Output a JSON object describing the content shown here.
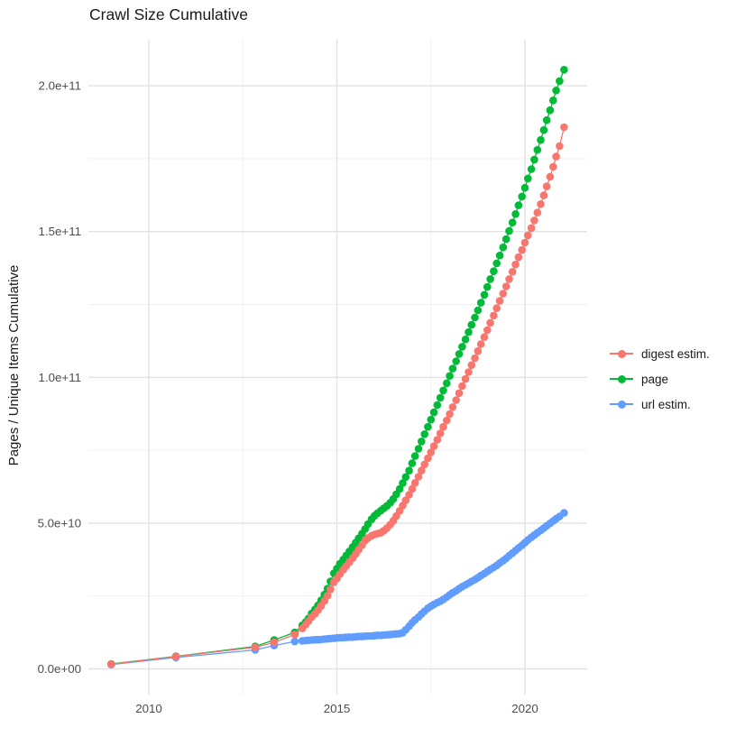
{
  "chart_data": {
    "type": "scatter",
    "title": "Crawl Size Cumulative",
    "xlabel": "",
    "ylabel": "Pages / Unique Items Cumulative",
    "unit": "values in billions (1e9) of pages / unique items",
    "grid": true,
    "legend_position": "right",
    "xlim": [
      2008.4,
      2021.7
    ],
    "ylim_billions": [
      -9,
      216
    ],
    "x_ticks": {
      "values": [
        2010,
        2015,
        2020
      ],
      "labels": [
        "2010",
        "2015",
        "2020"
      ]
    },
    "y_ticks": {
      "values": [
        0,
        50,
        100,
        150,
        200
      ],
      "labels": [
        "0.0e+00",
        "5.0e+10",
        "1.0e+11",
        "1.5e+11",
        "2.0e+11"
      ]
    },
    "x_minor": [
      2012.5,
      2017.5
    ],
    "y_minor": [
      25,
      75,
      125,
      175
    ],
    "x": [
      2009.0,
      2010.72,
      2012.83,
      2013.33,
      2013.88,
      2014.08,
      2014.17,
      2014.25,
      2014.33,
      2014.42,
      2014.5,
      2014.58,
      2014.67,
      2014.75,
      2014.83,
      2014.92,
      2015.0,
      2015.08,
      2015.17,
      2015.25,
      2015.33,
      2015.42,
      2015.5,
      2015.58,
      2015.67,
      2015.75,
      2015.83,
      2015.92,
      2016.0,
      2016.08,
      2016.17,
      2016.25,
      2016.33,
      2016.42,
      2016.5,
      2016.58,
      2016.67,
      2016.75,
      2016.83,
      2016.92,
      2017.0,
      2017.08,
      2017.17,
      2017.25,
      2017.33,
      2017.42,
      2017.5,
      2017.58,
      2017.67,
      2017.75,
      2017.83,
      2017.92,
      2018.0,
      2018.08,
      2018.17,
      2018.25,
      2018.33,
      2018.42,
      2018.5,
      2018.58,
      2018.67,
      2018.75,
      2018.83,
      2018.92,
      2019.0,
      2019.08,
      2019.17,
      2019.25,
      2019.33,
      2019.42,
      2019.5,
      2019.58,
      2019.67,
      2019.75,
      2019.83,
      2019.92,
      2020.0,
      2020.08,
      2020.17,
      2020.25,
      2020.33,
      2020.42,
      2020.5,
      2020.58,
      2020.67,
      2020.75,
      2020.83,
      2020.92,
      2021.04
    ],
    "series": [
      {
        "name": "digest estim.",
        "color": "#F8766D",
        "values": [
          1.6,
          4.2,
          7.4,
          9.1,
          11.8,
          13.9,
          15.2,
          16.4,
          17.8,
          18.9,
          20.1,
          21.6,
          23.3,
          25.1,
          27.3,
          29.7,
          31.0,
          32.5,
          34.0,
          35.3,
          36.6,
          38.0,
          39.4,
          40.9,
          42.4,
          44.0,
          44.9,
          45.6,
          46.1,
          46.4,
          46.7,
          47.4,
          48.3,
          49.5,
          50.8,
          52.4,
          54.2,
          56.0,
          57.8,
          59.7,
          61.7,
          63.8,
          65.9,
          68.0,
          70.1,
          72.2,
          74.3,
          76.4,
          78.6,
          80.8,
          83.0,
          85.2,
          87.4,
          89.8,
          92.2,
          94.6,
          97.0,
          99.4,
          101.8,
          104.2,
          106.6,
          109.0,
          111.4,
          113.8,
          116.2,
          118.7,
          121.2,
          123.7,
          126.2,
          128.7,
          131.2,
          133.7,
          136.2,
          138.7,
          141.2,
          143.7,
          146.2,
          148.7,
          151.2,
          153.8,
          156.5,
          159.4,
          162.4,
          165.5,
          168.8,
          172.2,
          175.7,
          179.3,
          185.8
        ]
      },
      {
        "name": "page",
        "color": "#00BA38",
        "values": [
          1.7,
          4.3,
          7.7,
          9.9,
          12.5,
          14.9,
          16.1,
          17.3,
          19.0,
          20.4,
          21.8,
          23.5,
          25.5,
          27.5,
          30.0,
          32.8,
          34.4,
          36.0,
          37.5,
          38.9,
          40.3,
          41.8,
          43.3,
          44.8,
          46.4,
          48.0,
          49.7,
          51.3,
          52.5,
          53.4,
          54.3,
          55.1,
          55.9,
          57.0,
          58.3,
          59.9,
          61.7,
          63.7,
          65.8,
          68.0,
          70.5,
          73.0,
          75.5,
          78.0,
          80.5,
          83.0,
          85.5,
          88.0,
          90.5,
          93.0,
          95.5,
          98.0,
          100.5,
          103.0,
          105.5,
          108.0,
          110.5,
          113.0,
          115.5,
          118.0,
          120.5,
          123.0,
          125.6,
          128.3,
          131.0,
          133.7,
          136.4,
          139.1,
          141.8,
          144.6,
          147.4,
          150.2,
          153.1,
          156.0,
          159.0,
          162.0,
          165.0,
          168.2,
          171.4,
          174.7,
          178.0,
          181.4,
          184.8,
          188.2,
          191.6,
          195.0,
          198.4,
          201.6,
          205.5
        ]
      },
      {
        "name": "url estim.",
        "color": "#619CFF",
        "values": [
          1.5,
          3.9,
          6.5,
          8.0,
          9.4,
          9.6,
          9.7,
          9.8,
          9.9,
          10.0,
          10.0,
          10.1,
          10.2,
          10.3,
          10.4,
          10.5,
          10.6,
          10.7,
          10.7,
          10.8,
          10.9,
          10.9,
          11.0,
          11.1,
          11.1,
          11.2,
          11.3,
          11.3,
          11.4,
          11.5,
          11.5,
          11.6,
          11.7,
          11.8,
          11.9,
          12.0,
          12.1,
          12.4,
          13.4,
          14.6,
          15.8,
          16.8,
          17.8,
          18.8,
          19.8,
          20.8,
          21.5,
          22.1,
          22.7,
          23.2,
          23.8,
          24.6,
          25.4,
          26.1,
          26.8,
          27.5,
          28.2,
          28.8,
          29.4,
          30.0,
          30.6,
          31.3,
          32.0,
          32.7,
          33.4,
          34.1,
          34.8,
          35.5,
          36.3,
          37.1,
          37.9,
          38.8,
          39.7,
          40.6,
          41.5,
          42.4,
          43.3,
          44.2,
          45.1,
          45.9,
          46.7,
          47.5,
          48.3,
          49.1,
          49.9,
          50.7,
          51.5,
          52.3,
          53.5
        ]
      }
    ],
    "legend_order": [
      "digest estim.",
      "page",
      "url estim."
    ],
    "draw_order": [
      "page",
      "url estim.",
      "digest estim."
    ]
  },
  "palette": {
    "background": "#FFFFFF",
    "grid_major": "#E2E2E2",
    "grid_minor": "#EFEFEF",
    "tick_label": "#4D4D4D",
    "text": "#1A1A1A"
  }
}
